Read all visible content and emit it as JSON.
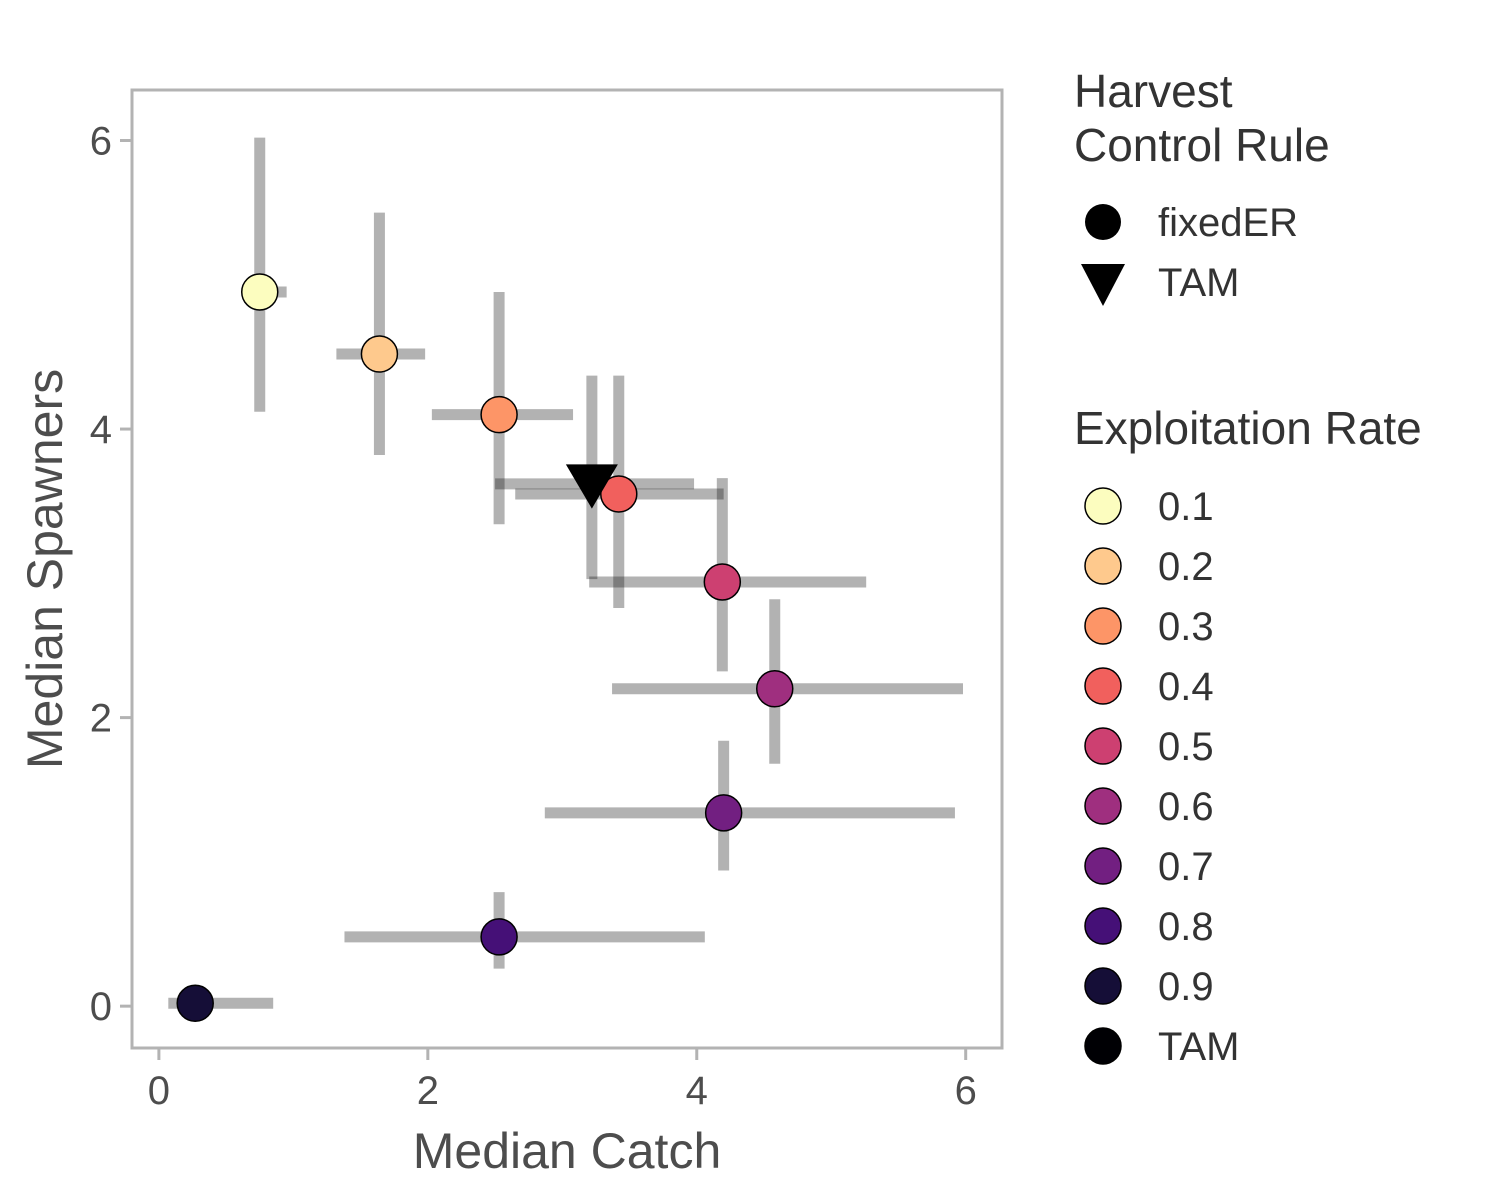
{
  "chart_data": {
    "type": "scatter",
    "xlabel": "Median Catch",
    "ylabel": "Median Spawners",
    "xlim": [
      -0.2,
      6.27
    ],
    "ylim": [
      -0.29,
      6.35
    ],
    "xticks": [
      0,
      2,
      4,
      6
    ],
    "yticks": [
      0,
      2,
      4,
      6
    ],
    "grid": false,
    "colors": {
      "0.1": "#fcfdbf",
      "0.2": "#fec98d",
      "0.3": "#fd9567",
      "0.4": "#f1605d",
      "0.5": "#cd4071",
      "0.6": "#9f2f7f",
      "0.7": "#721f81",
      "0.8": "#451077",
      "0.9": "#150e37",
      "TAM": "#000004"
    },
    "points": [
      {
        "rule": "fixedER",
        "er": "0.1",
        "x": 0.75,
        "y": 4.95,
        "x_lo": 0.73,
        "x_hi": 0.95,
        "y_lo": 4.12,
        "y_hi": 6.02
      },
      {
        "rule": "fixedER",
        "er": "0.2",
        "x": 1.64,
        "y": 4.52,
        "x_lo": 1.32,
        "x_hi": 1.98,
        "y_lo": 3.82,
        "y_hi": 5.5
      },
      {
        "rule": "fixedER",
        "er": "0.3",
        "x": 2.53,
        "y": 4.1,
        "x_lo": 2.03,
        "x_hi": 3.08,
        "y_lo": 3.34,
        "y_hi": 4.95
      },
      {
        "rule": "fixedER",
        "er": "0.4",
        "x": 3.42,
        "y": 3.55,
        "x_lo": 2.65,
        "x_hi": 4.2,
        "y_lo": 2.76,
        "y_hi": 4.37
      },
      {
        "rule": "fixedER",
        "er": "0.5",
        "x": 4.19,
        "y": 2.94,
        "x_lo": 3.2,
        "x_hi": 5.26,
        "y_lo": 2.32,
        "y_hi": 3.66
      },
      {
        "rule": "fixedER",
        "er": "0.6",
        "x": 4.58,
        "y": 2.2,
        "x_lo": 3.37,
        "x_hi": 5.98,
        "y_lo": 1.68,
        "y_hi": 2.82
      },
      {
        "rule": "fixedER",
        "er": "0.7",
        "x": 4.2,
        "y": 1.34,
        "x_lo": 2.87,
        "x_hi": 5.92,
        "y_lo": 0.94,
        "y_hi": 1.84
      },
      {
        "rule": "fixedER",
        "er": "0.8",
        "x": 2.53,
        "y": 0.48,
        "x_lo": 1.38,
        "x_hi": 4.06,
        "y_lo": 0.26,
        "y_hi": 0.79
      },
      {
        "rule": "fixedER",
        "er": "0.9",
        "x": 0.27,
        "y": 0.02,
        "x_lo": 0.07,
        "x_hi": 0.85,
        "y_lo": 0.0,
        "y_hi": 0.06
      },
      {
        "rule": "TAM",
        "er": "TAM",
        "x": 3.22,
        "y": 3.62,
        "x_lo": 2.5,
        "x_hi": 3.98,
        "y_lo": 2.96,
        "y_hi": 4.37
      }
    ]
  },
  "legend": {
    "shape_title_line1": "Harvest",
    "shape_title_line2": "Control Rule",
    "shape_items": [
      {
        "label": "fixedER",
        "shape": "circle"
      },
      {
        "label": "TAM",
        "shape": "triangle-down"
      }
    ],
    "color_title": "Exploitation Rate",
    "color_items": [
      {
        "label": "0.1",
        "color": "#fcfdbf"
      },
      {
        "label": "0.2",
        "color": "#fec98d"
      },
      {
        "label": "0.3",
        "color": "#fd9567"
      },
      {
        "label": "0.4",
        "color": "#f1605d"
      },
      {
        "label": "0.5",
        "color": "#cd4071"
      },
      {
        "label": "0.6",
        "color": "#9f2f7f"
      },
      {
        "label": "0.7",
        "color": "#721f81"
      },
      {
        "label": "0.8",
        "color": "#451077"
      },
      {
        "label": "0.9",
        "color": "#150e37"
      },
      {
        "label": "TAM",
        "color": "#000004"
      }
    ]
  }
}
